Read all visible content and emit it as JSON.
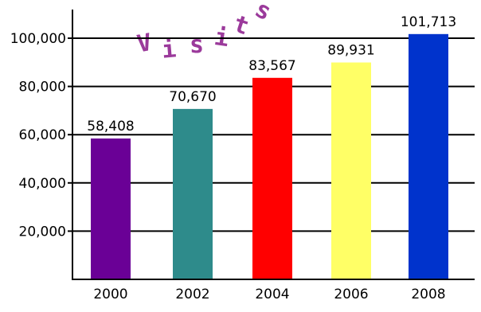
{
  "chart_data": {
    "type": "bar",
    "title": "Visits",
    "categories": [
      "2000",
      "2002",
      "2004",
      "2006",
      "2008"
    ],
    "values": [
      58408,
      70670,
      83567,
      89931,
      101713
    ],
    "value_labels": [
      "58,408",
      "70,670",
      "83,567",
      "89,931",
      "101,713"
    ],
    "colors": [
      "#6a0096",
      "#2e8b8b",
      "#ff0000",
      "#ffff66",
      "#0033cc"
    ],
    "y_ticks": [
      20000,
      40000,
      60000,
      80000,
      100000
    ],
    "y_tick_labels": [
      "20,000",
      "40,000",
      "60,000",
      "80,000",
      "100,000"
    ],
    "ylim": [
      0,
      110000
    ],
    "grid": true
  }
}
